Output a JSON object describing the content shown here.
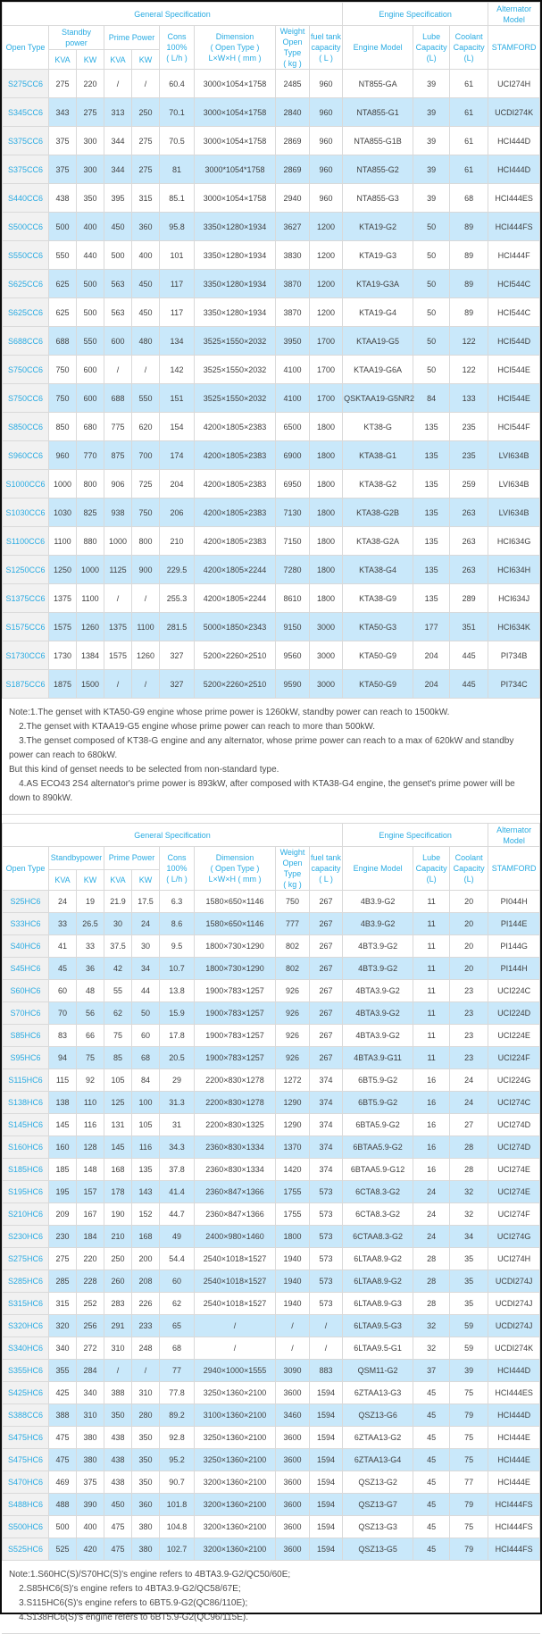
{
  "table1": {
    "header": {
      "general": "General Specification",
      "engine": "Engine Specification",
      "alternator": "Alternator\nModel",
      "open_type": "Open Type",
      "standby": "Standby\npower",
      "prime": "Prime Power",
      "kva": "KVA",
      "kw": "KW",
      "cons": "Cons\n100%\n( L/h )",
      "dimension": "Dimension\n( Open Type )\nL×W×H ( mm )",
      "weight": "Weight\nOpen Type\n( kg )",
      "fuel": "fuel tank\ncapacity\n( L )",
      "engine_model": "Engine Model",
      "lube": "Lube\nCapacity\n(L)",
      "coolant": "Coolant\nCapacity\n(L)",
      "stamford": "STAMFORD"
    },
    "rows": [
      [
        "S275CC6",
        "275",
        "220",
        "/",
        "/",
        "60.4",
        "3000×1054×1758",
        "2485",
        "960",
        "NT855-GA",
        "39",
        "61",
        "UCI274H"
      ],
      [
        "S345CC6",
        "343",
        "275",
        "313",
        "250",
        "70.1",
        "3000×1054×1758",
        "2840",
        "960",
        "NTA855-G1",
        "39",
        "61",
        "UCDI274K"
      ],
      [
        "S375CC6",
        "375",
        "300",
        "344",
        "275",
        "70.5",
        "3000×1054×1758",
        "2869",
        "960",
        "NTA855-G1B",
        "39",
        "61",
        "HCI444D"
      ],
      [
        "S375CC6",
        "375",
        "300",
        "344",
        "275",
        "81",
        "3000*1054*1758",
        "2869",
        "960",
        "NTA855-G2",
        "39",
        "61",
        "HCI444D"
      ],
      [
        "S440CC6",
        "438",
        "350",
        "395",
        "315",
        "85.1",
        "3000×1054×1758",
        "2940",
        "960",
        "NTA855-G3",
        "39",
        "68",
        "HCI444ES"
      ],
      [
        "S500CC6",
        "500",
        "400",
        "450",
        "360",
        "95.8",
        "3350×1280×1934",
        "3627",
        "1200",
        "KTA19-G2",
        "50",
        "89",
        "HCI444FS"
      ],
      [
        "S550CC6",
        "550",
        "440",
        "500",
        "400",
        "101",
        "3350×1280×1934",
        "3830",
        "1200",
        "KTA19-G3",
        "50",
        "89",
        "HCI444F"
      ],
      [
        "S625CC6",
        "625",
        "500",
        "563",
        "450",
        "117",
        "3350×1280×1934",
        "3870",
        "1200",
        "KTA19-G3A",
        "50",
        "89",
        "HCI544C"
      ],
      [
        "S625CC6",
        "625",
        "500",
        "563",
        "450",
        "117",
        "3350×1280×1934",
        "3870",
        "1200",
        "KTA19-G4",
        "50",
        "89",
        "HCI544C"
      ],
      [
        "S688CC6",
        "688",
        "550",
        "600",
        "480",
        "134",
        "3525×1550×2032",
        "3950",
        "1700",
        "KTAA19-G5",
        "50",
        "122",
        "HCI544D"
      ],
      [
        "S750CC6",
        "750",
        "600",
        "/",
        "/",
        "142",
        "3525×1550×2032",
        "4100",
        "1700",
        "KTAA19-G6A",
        "50",
        "122",
        "HCI544E"
      ],
      [
        "S750CC6",
        "750",
        "600",
        "688",
        "550",
        "151",
        "3525×1550×2032",
        "4100",
        "1700",
        "QSKTAA19-G5NR2",
        "84",
        "133",
        "HCI544E"
      ],
      [
        "S850CC6",
        "850",
        "680",
        "775",
        "620",
        "154",
        "4200×1805×2383",
        "6500",
        "1800",
        "KT38-G",
        "135",
        "235",
        "HCI544F"
      ],
      [
        "S960CC6",
        "960",
        "770",
        "875",
        "700",
        "174",
        "4200×1805×2383",
        "6900",
        "1800",
        "KTA38-G1",
        "135",
        "235",
        "LVI634B"
      ],
      [
        "S1000CC6",
        "1000",
        "800",
        "906",
        "725",
        "204",
        "4200×1805×2383",
        "6950",
        "1800",
        "KTA38-G2",
        "135",
        "259",
        "LVI634B"
      ],
      [
        "S1030CC6",
        "1030",
        "825",
        "938",
        "750",
        "206",
        "4200×1805×2383",
        "7130",
        "1800",
        "KTA38-G2B",
        "135",
        "263",
        "LVI634B"
      ],
      [
        "S1100CC6",
        "1100",
        "880",
        "1000",
        "800",
        "210",
        "4200×1805×2383",
        "7150",
        "1800",
        "KTA38-G2A",
        "135",
        "263",
        "HCI634G"
      ],
      [
        "S1250CC6",
        "1250",
        "1000",
        "1125",
        "900",
        "229.5",
        "4200×1805×2244",
        "7280",
        "1800",
        "KTA38-G4",
        "135",
        "263",
        "HCI634H"
      ],
      [
        "S1375CC6",
        "1375",
        "1100",
        "/",
        "/",
        "255.3",
        "4200×1805×2244",
        "8610",
        "1800",
        "KTA38-G9",
        "135",
        "289",
        "HCI634J"
      ],
      [
        "S1575CC6",
        "1575",
        "1260",
        "1375",
        "1100",
        "281.5",
        "5000×1850×2343",
        "9150",
        "3000",
        "KTA50-G3",
        "177",
        "351",
        "HCI634K"
      ],
      [
        "S1730CC6",
        "1730",
        "1384",
        "1575",
        "1260",
        "327",
        "5200×2260×2510",
        "9560",
        "3000",
        "KTA50-G9",
        "204",
        "445",
        "PI734B"
      ],
      [
        "S1875CC6",
        "1875",
        "1500",
        "/",
        "/",
        "327",
        "5200×2260×2510",
        "9590",
        "3000",
        "KTA50-G9",
        "204",
        "445",
        "PI734C"
      ]
    ]
  },
  "note1": {
    "text": "Note:1.The genset with KTA50-G9 engine whose prime power is 1260kW, standby power can reach to 1500kW.\n    2.The genset with KTAA19-G5 engine whose prime power can reach to more than 500kW.\n    3.The genset composed of KT38-G engine and any alternator, whose prime power can reach to a max of 620kW and standby power can reach to 680kW.\nBut this kind of genset needs to be selected from non-standard type.\n    4.AS ECO43 2S4 alternator's prime power is 893kW, after composed with KTA38-G4 engine, the genset's prime power will be down to 890kW."
  },
  "table2": {
    "header": {
      "general": "General Specification",
      "engine": "Engine Specification",
      "alternator": "Alternator\nModel",
      "open_type": "Open Type",
      "standby": "Standbypower",
      "prime": "Prime Power",
      "kva": "KVA",
      "kw": "KW",
      "cons": "Cons\n100%\n( L/h )",
      "dimension": "Dimension\n( Open Type )\nL×W×H ( mm )",
      "weight": "Weight\nOpen Type\n( kg )",
      "fuel": "fuel tank\ncapacity\n( L )",
      "engine_model": "Engine Model",
      "lube": "Lube\nCapacity\n(L)",
      "coolant": "Coolant\nCapacity\n(L)",
      "stamford": "STAMFORD"
    },
    "rows": [
      [
        "S25HC6",
        "24",
        "19",
        "21.9",
        "17.5",
        "6.3",
        "1580×650×1146",
        "750",
        "267",
        "4B3.9-G2",
        "11",
        "20",
        "PI044H"
      ],
      [
        "S33HC6",
        "33",
        "26.5",
        "30",
        "24",
        "8.6",
        "1580×650×1146",
        "777",
        "267",
        "4B3.9-G2",
        "11",
        "20",
        "PI144E"
      ],
      [
        "S40HC6",
        "41",
        "33",
        "37.5",
        "30",
        "9.5",
        "1800×730×1290",
        "802",
        "267",
        "4BT3.9-G2",
        "11",
        "20",
        "PI144G"
      ],
      [
        "S45HC6",
        "45",
        "36",
        "42",
        "34",
        "10.7",
        "1800×730×1290",
        "802",
        "267",
        "4BT3.9-G2",
        "11",
        "20",
        "PI144H"
      ],
      [
        "S60HC6",
        "60",
        "48",
        "55",
        "44",
        "13.8",
        "1900×783×1257",
        "926",
        "267",
        "4BTA3.9-G2",
        "11",
        "23",
        "UCI224C"
      ],
      [
        "S70HC6",
        "70",
        "56",
        "62",
        "50",
        "15.9",
        "1900×783×1257",
        "926",
        "267",
        "4BTA3.9-G2",
        "11",
        "23",
        "UCI224D"
      ],
      [
        "S85HC6",
        "83",
        "66",
        "75",
        "60",
        "17.8",
        "1900×783×1257",
        "926",
        "267",
        "4BTA3.9-G2",
        "11",
        "23",
        "UCI224E"
      ],
      [
        "S95HC6",
        "94",
        "75",
        "85",
        "68",
        "20.5",
        "1900×783×1257",
        "926",
        "267",
        "4BTA3.9-G11",
        "11",
        "23",
        "UCI224F"
      ],
      [
        "S115HC6",
        "115",
        "92",
        "105",
        "84",
        "29",
        "2200×830×1278",
        "1272",
        "374",
        "6BT5.9-G2",
        "16",
        "24",
        "UCI224G"
      ],
      [
        "S138HC6",
        "138",
        "110",
        "125",
        "100",
        "31.3",
        "2200×830×1278",
        "1290",
        "374",
        "6BT5.9-G2",
        "16",
        "24",
        "UCI274C"
      ],
      [
        "S145HC6",
        "145",
        "116",
        "131",
        "105",
        "31",
        "2200×830×1325",
        "1290",
        "374",
        "6BTA5.9-G2",
        "16",
        "27",
        "UCI274D"
      ],
      [
        "S160HC6",
        "160",
        "128",
        "145",
        "116",
        "34.3",
        "2360×830×1334",
        "1370",
        "374",
        "6BTAA5.9-G2",
        "16",
        "28",
        "UCI274D"
      ],
      [
        "S185HC6",
        "185",
        "148",
        "168",
        "135",
        "37.8",
        "2360×830×1334",
        "1420",
        "374",
        "6BTAA5.9-G12",
        "16",
        "28",
        "UCI274E"
      ],
      [
        "S195HC6",
        "195",
        "157",
        "178",
        "143",
        "41.4",
        "2360×847×1366",
        "1755",
        "573",
        "6CTA8.3-G2",
        "24",
        "32",
        "UCI274E"
      ],
      [
        "S210HC6",
        "209",
        "167",
        "190",
        "152",
        "44.7",
        "2360×847×1366",
        "1755",
        "573",
        "6CTA8.3-G2",
        "24",
        "32",
        "UCI274F"
      ],
      [
        "S230HC6",
        "230",
        "184",
        "210",
        "168",
        "49",
        "2400×980×1460",
        "1800",
        "573",
        "6CTAA8.3-G2",
        "24",
        "34",
        "UCI274G"
      ],
      [
        "S275HC6",
        "275",
        "220",
        "250",
        "200",
        "54.4",
        "2540×1018×1527",
        "1940",
        "573",
        "6LTAA8.9-G2",
        "28",
        "35",
        "UCI274H"
      ],
      [
        "S285HC6",
        "285",
        "228",
        "260",
        "208",
        "60",
        "2540×1018×1527",
        "1940",
        "573",
        "6LTAA8.9-G2",
        "28",
        "35",
        "UCDI274J"
      ],
      [
        "S315HC6",
        "315",
        "252",
        "283",
        "226",
        "62",
        "2540×1018×1527",
        "1940",
        "573",
        "6LTAA8.9-G3",
        "28",
        "35",
        "UCDI274J"
      ],
      [
        "S320HC6",
        "320",
        "256",
        "291",
        "233",
        "65",
        "/",
        "/",
        "/",
        "6LTAA9.5-G3",
        "32",
        "59",
        "UCDI274J"
      ],
      [
        "S340HC6",
        "340",
        "272",
        "310",
        "248",
        "68",
        "/",
        "/",
        "/",
        "6LTAA9.5-G1",
        "32",
        "59",
        "UCDI274K"
      ],
      [
        "S355HC6",
        "355",
        "284",
        "/",
        "/",
        "77",
        "2940×1000×1555",
        "3090",
        "883",
        "QSM11-G2",
        "37",
        "39",
        "HCI444D"
      ],
      [
        "S425HC6",
        "425",
        "340",
        "388",
        "310",
        "77.8",
        "3250×1360×2100",
        "3600",
        "1594",
        "6ZTAA13-G3",
        "45",
        "75",
        "HCI444ES"
      ],
      [
        "S388CC6",
        "388",
        "310",
        "350",
        "280",
        "89.2",
        "3100×1360×2100",
        "3460",
        "1594",
        "QSZ13-G6",
        "45",
        "79",
        "HCI444D"
      ],
      [
        "S475HC6",
        "475",
        "380",
        "438",
        "350",
        "92.8",
        "3250×1360×2100",
        "3600",
        "1594",
        "6ZTAA13-G2",
        "45",
        "75",
        "HCI444E"
      ],
      [
        "S475HC6",
        "475",
        "380",
        "438",
        "350",
        "95.2",
        "3250×1360×2100",
        "3600",
        "1594",
        "6ZTAA13-G4",
        "45",
        "75",
        "HCI444E"
      ],
      [
        "S470HC6",
        "469",
        "375",
        "438",
        "350",
        "90.7",
        "3200×1360×2100",
        "3600",
        "1594",
        "QSZ13-G2",
        "45",
        "77",
        "HCI444E"
      ],
      [
        "S488HC6",
        "488",
        "390",
        "450",
        "360",
        "101.8",
        "3200×1360×2100",
        "3600",
        "1594",
        "QSZ13-G7",
        "45",
        "79",
        "HCI444FS"
      ],
      [
        "S500HC6",
        "500",
        "400",
        "475",
        "380",
        "104.8",
        "3200×1360×2100",
        "3600",
        "1594",
        "QSZ13-G3",
        "45",
        "75",
        "HCI444FS"
      ],
      [
        "S525HC6",
        "525",
        "420",
        "475",
        "380",
        "102.7",
        "3200×1360×2100",
        "3600",
        "1594",
        "QSZ13-G5",
        "45",
        "79",
        "HCI444FS"
      ]
    ]
  },
  "note2": {
    "text": "Note:1.S60HC(S)/S70HC(S)'s engine refers to 4BTA3.9-G2/QC50/60E;\n    2.S85HC6(S)'s engine refers to 4BTA3.9-G2/QC58/67E;\n    3.S115HC6(S)'s engine refers to 6BT5.9-G2(QC86/110E);\n    4.S138HC6(S)'s engine refers to 6BT5.9-G2(QC96/115E)."
  }
}
